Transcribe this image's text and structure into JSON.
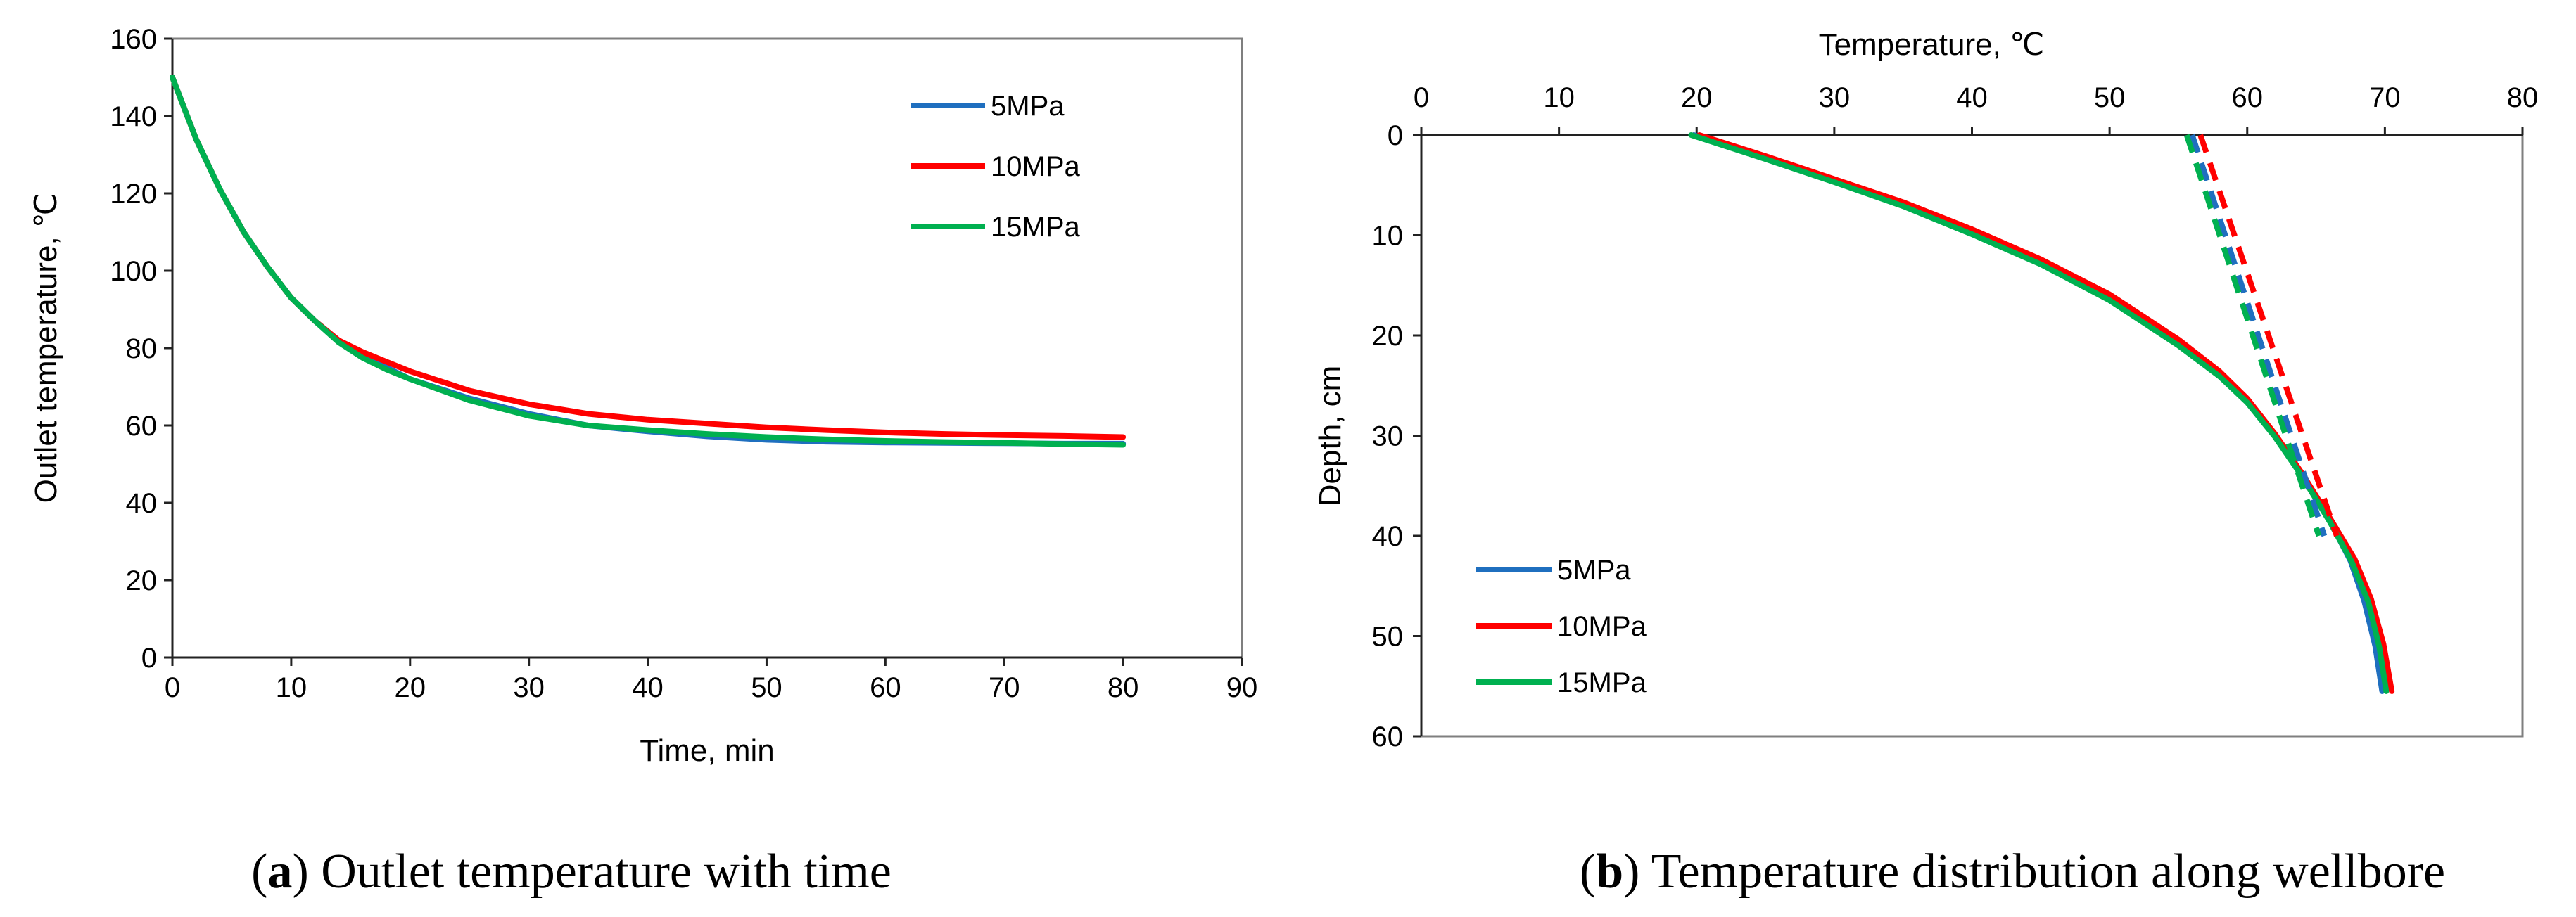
{
  "chart_data": [
    {
      "type": "line",
      "panel": "a",
      "caption_letter": "a",
      "caption_text": "Outlet temperature with time",
      "title": "",
      "xlabel": "Time,  min",
      "ylabel": "Outlet temperature,  ℃",
      "xlim": [
        0,
        90
      ],
      "ylim": [
        0,
        160
      ],
      "xticks": [
        0,
        10,
        20,
        30,
        40,
        50,
        60,
        70,
        80,
        90
      ],
      "yticks": [
        0,
        20,
        40,
        60,
        80,
        100,
        120,
        140,
        160
      ],
      "legend_position": "top-right",
      "series": [
        {
          "name": "5MPa",
          "color": "#1f6fbf",
          "x": [
            0,
            2,
            4,
            6,
            8,
            10,
            12,
            14,
            16,
            18,
            20,
            25,
            30,
            35,
            40,
            45,
            50,
            55,
            60,
            65,
            70,
            75,
            80
          ],
          "y": [
            150,
            134,
            121,
            110,
            101,
            93,
            87,
            82,
            78,
            75,
            72,
            67,
            63,
            60,
            58.5,
            57.2,
            56.3,
            55.8,
            55.6,
            55.5,
            55.4,
            55.3,
            55.3
          ]
        },
        {
          "name": "10MPa",
          "color": "#ff0000",
          "x": [
            0,
            2,
            4,
            6,
            8,
            10,
            12,
            14,
            16,
            18,
            20,
            25,
            30,
            35,
            40,
            45,
            50,
            55,
            60,
            65,
            70,
            75,
            80
          ],
          "y": [
            150,
            134,
            121,
            110,
            101,
            93,
            87,
            82,
            79,
            76.5,
            74,
            69,
            65.5,
            63,
            61.5,
            60.5,
            59.5,
            58.8,
            58.2,
            57.8,
            57.5,
            57.3,
            57
          ]
        },
        {
          "name": "15MPa",
          "color": "#00b050",
          "x": [
            0,
            2,
            4,
            6,
            8,
            10,
            12,
            14,
            16,
            18,
            20,
            25,
            30,
            35,
            40,
            45,
            50,
            55,
            60,
            65,
            70,
            75,
            80
          ],
          "y": [
            150,
            134,
            121,
            110,
            101,
            93,
            87,
            81.5,
            77.5,
            74.5,
            72,
            66.5,
            62.5,
            60,
            58.8,
            57.8,
            57,
            56.4,
            56,
            55.7,
            55.5,
            55.2,
            55
          ]
        }
      ]
    },
    {
      "type": "line",
      "panel": "b",
      "caption_letter": "b",
      "caption_text": "Temperature distribution along wellbore",
      "title": "",
      "xlabel": "Temperature,  ℃",
      "ylabel": "Depth,  cm",
      "xlim": [
        0,
        80
      ],
      "ylim": [
        0,
        60
      ],
      "y_inverted": true,
      "x_axis_position": "top",
      "xticks": [
        0,
        10,
        20,
        30,
        40,
        50,
        60,
        70,
        80
      ],
      "yticks": [
        0,
        10,
        20,
        30,
        40,
        50,
        60
      ],
      "legend_position": "bottom-left",
      "series": [
        {
          "name": "5MPa",
          "color": "#1f6fbf",
          "style": "solid",
          "x": [
            19.8,
            25,
            30,
            35,
            40,
            45,
            50,
            55,
            58,
            60,
            62,
            64,
            66,
            67.5,
            68.5,
            69.3,
            69.8
          ],
          "y": [
            0,
            2.3,
            4.6,
            7,
            9.8,
            12.8,
            16.4,
            20.9,
            24,
            26.6,
            30,
            34,
            38.5,
            42.5,
            46.5,
            51,
            55.5
          ]
        },
        {
          "name": "10MPa",
          "color": "#ff0000",
          "style": "solid",
          "x": [
            20.2,
            25,
            30,
            35,
            40,
            45,
            50,
            55,
            58,
            60,
            62,
            64,
            66,
            67.8,
            69,
            69.9,
            70.5
          ],
          "y": [
            0,
            2.1,
            4.4,
            6.7,
            9.4,
            12.4,
            15.9,
            20.4,
            23.6,
            26.3,
            29.8,
            33.8,
            38.2,
            42.3,
            46.3,
            50.8,
            55.5
          ]
        },
        {
          "name": "15MPa",
          "color": "#00b050",
          "style": "solid",
          "x": [
            19.6,
            25,
            30,
            35,
            40,
            45,
            50,
            55,
            58,
            60,
            62,
            64,
            66,
            67.6,
            68.8,
            69.6,
            70.1
          ],
          "y": [
            0,
            2.4,
            4.7,
            7.1,
            9.9,
            12.9,
            16.5,
            21,
            24.1,
            26.7,
            30.1,
            34.1,
            38.6,
            42.6,
            46.6,
            51.1,
            55.5
          ]
        },
        {
          "name": "5MPa (dashed)",
          "color": "#1f6fbf",
          "style": "dashed",
          "x": [
            56,
            65.6
          ],
          "y": [
            0,
            40
          ]
        },
        {
          "name": "10MPa (dashed)",
          "color": "#ff0000",
          "style": "dashed",
          "x": [
            56.6,
            66.5
          ],
          "y": [
            0,
            40
          ]
        },
        {
          "name": "15MPa (dashed)",
          "color": "#00b050",
          "style": "dashed",
          "x": [
            55.6,
            65.2
          ],
          "y": [
            0,
            40
          ]
        }
      ]
    }
  ]
}
